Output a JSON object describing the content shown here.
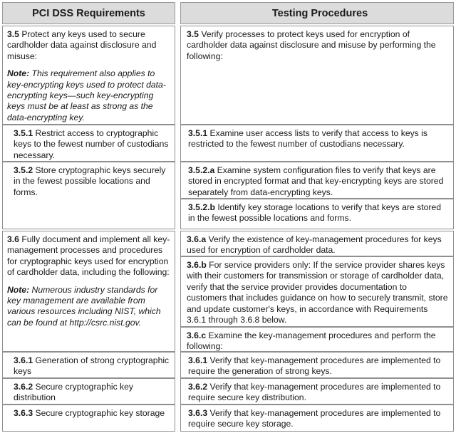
{
  "header": {
    "left": "PCI DSS Requirements",
    "right": "Testing Procedures"
  },
  "rows": {
    "r35": {
      "req_num": "3.5",
      "req_text": " Protect any keys used to secure cardholder data against disclosure and misuse:",
      "note_label": "Note:",
      "note_text": " This requirement also applies to key-encrypting keys used to protect data-encrypting keys—such key-encrypting keys must be at least as strong as the data-encrypting key.",
      "test_num": "3.5",
      "test_text": " Verify processes to protect keys used for encryption of cardholder data against disclosure and misuse by performing the following:"
    },
    "r351": {
      "req_num": "3.5.1",
      "req_text": " Restrict access to cryptographic keys to the fewest number of custodians necessary.",
      "test_num": "3.5.1",
      "test_text": " Examine user access lists to verify that access to keys is restricted to the fewest number of custodians necessary."
    },
    "r352": {
      "req_num": "3.5.2",
      "req_text": " Store cryptographic keys securely in the fewest possible locations and forms.",
      "test_a_num": "3.5.2.a",
      "test_a_text": " Examine system configuration files to verify that keys are stored in encrypted format and that key-encrypting keys are stored separately from data-encrypting keys.",
      "test_b_num": "3.5.2.b",
      "test_b_text": " Identify key storage locations to verify that keys are stored in the fewest possible locations and forms."
    },
    "r36": {
      "req_num": "3.6",
      "req_text": " Fully document and implement all key-management processes and procedures for cryptographic keys used for encryption of cardholder data, including the following:",
      "note_label": "Note:",
      "note_text": " Numerous industry standards for key management are available from various resources including NIST, which can be found at http://csrc.nist.gov.",
      "test_a_num": "3.6.a",
      "test_a_text": " Verify the existence of key-management procedures for keys used for encryption of cardholder data.",
      "test_b_num": "3.6.b",
      "test_b_text": " For service providers only: If the service provider shares keys with their customers for transmission or storage of cardholder data, verify that the service provider provides documentation to customers that includes guidance on how to securely transmit, store and update customer's keys, in accordance with Requirements 3.6.1 through 3.6.8 below.",
      "test_c_num": "3.6.c",
      "test_c_text": " Examine the key-management procedures and perform the following:"
    },
    "r361": {
      "req_num": "3.6.1",
      "req_text": " Generation of strong cryptographic keys",
      "test_num": "3.6.1",
      "test_text": " Verify that key-management procedures are implemented to require the generation of strong keys."
    },
    "r362": {
      "req_num": "3.6.2",
      "req_text": " Secure cryptographic key distribution",
      "test_num": "3.6.2",
      "test_text": " Verify that key-management procedures are implemented to require secure key distribution."
    },
    "r363": {
      "req_num": "3.6.3",
      "req_text": " Secure cryptographic key storage",
      "test_num": "3.6.3",
      "test_text": " Verify that key-management procedures are implemented to require secure key storage."
    }
  }
}
